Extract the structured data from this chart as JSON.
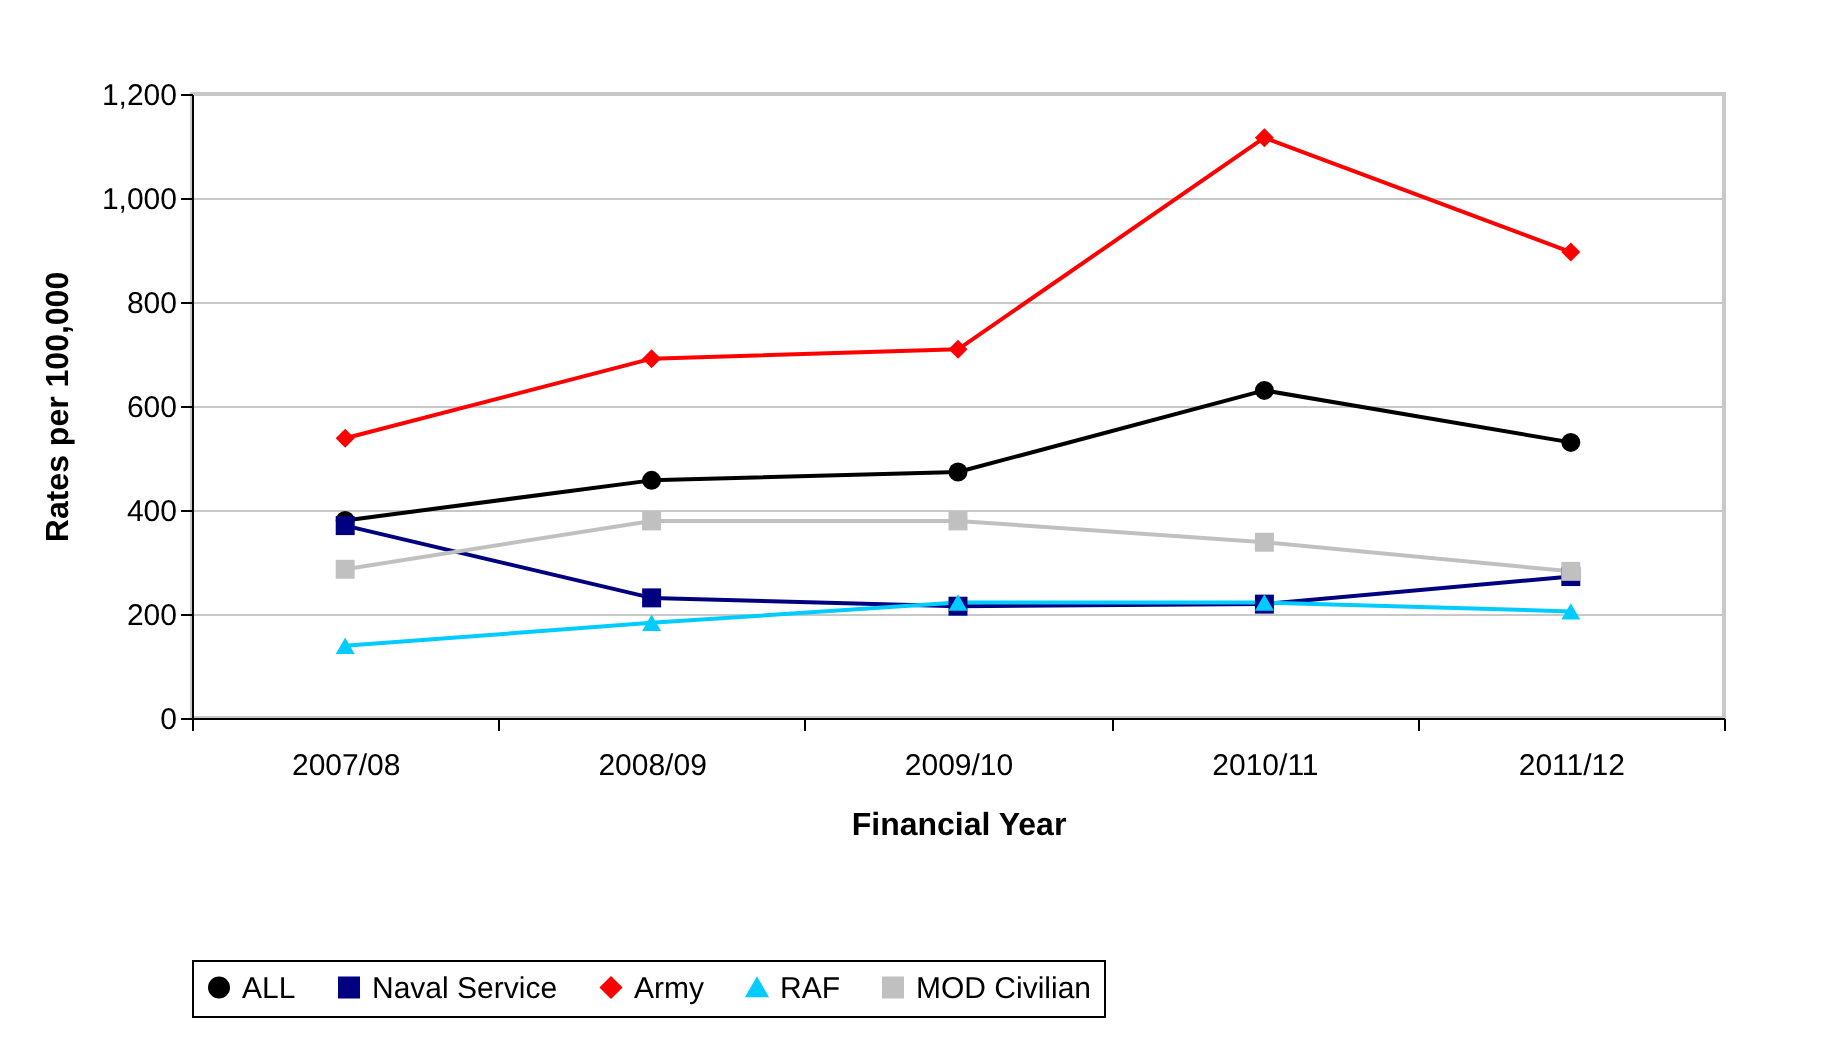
{
  "chart_data": {
    "type": "line",
    "xlabel": "Financial Year",
    "ylabel": "Rates per 100,000",
    "categories": [
      "2007/08",
      "2008/09",
      "2009/10",
      "2010/11",
      "2011/12"
    ],
    "series": [
      {
        "name": "ALL",
        "color": "#000000",
        "marker": "circle",
        "values": [
          380,
          457,
          473,
          630,
          530
        ]
      },
      {
        "name": "Naval Service",
        "color": "#000080",
        "marker": "square",
        "values": [
          370,
          231,
          215,
          219,
          272
        ]
      },
      {
        "name": "Army",
        "color": "#ff0000",
        "marker": "diamond",
        "values": [
          538,
          691,
          709,
          1116,
          896
        ]
      },
      {
        "name": "RAF",
        "color": "#00ccff",
        "marker": "triangle",
        "values": [
          139,
          183,
          222,
          222,
          205
        ]
      },
      {
        "name": "MOD Civilian",
        "color": "#c0c0c0",
        "marker": "square",
        "values": [
          286,
          379,
          379,
          338,
          282
        ]
      }
    ],
    "ylim": [
      0,
      1200
    ],
    "yticks": [
      {
        "value": 0,
        "label": "0"
      },
      {
        "value": 200,
        "label": "200"
      },
      {
        "value": 400,
        "label": "400"
      },
      {
        "value": 600,
        "label": "600"
      },
      {
        "value": 800,
        "label": "800"
      },
      {
        "value": 1000,
        "label": "1,000"
      },
      {
        "value": 1200,
        "label": "1,200"
      }
    ],
    "grid": "y",
    "legend": "bottom"
  }
}
